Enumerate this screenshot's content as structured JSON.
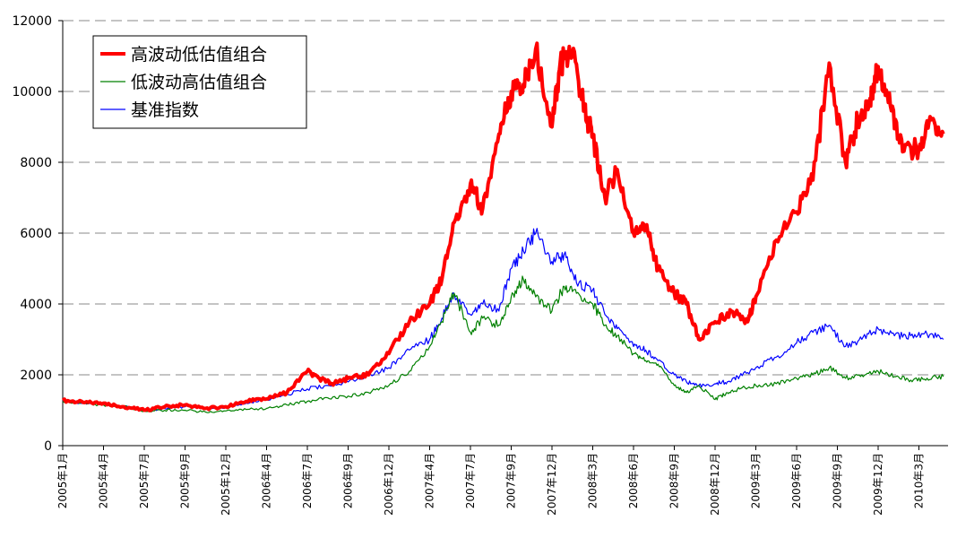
{
  "chart_data": {
    "type": "line",
    "title": "",
    "xlabel": "",
    "ylabel": "",
    "ylim": [
      0,
      12000
    ],
    "y_ticks": [
      0,
      2000,
      4000,
      6000,
      8000,
      10000,
      12000
    ],
    "y_tick_labels": [
      "0",
      "2000",
      "4000",
      "6000",
      "8000",
      "10000",
      "12000"
    ],
    "grid": "horizontal dashed",
    "legend_position": "top-left",
    "x_tick_labels": [
      "2005年1月",
      "2005年4月",
      "2005年7月",
      "2005年9月",
      "2005年12月",
      "2006年4月",
      "2006年7月",
      "2006年9月",
      "2006年12月",
      "2007年4月",
      "2007年7月",
      "2007年9月",
      "2007年12月",
      "2008年3月",
      "2008年6月",
      "2008年9月",
      "2008年12月",
      "2009年3月",
      "2009年6月",
      "2009年9月",
      "2009年12月",
      "2010年3月"
    ],
    "x_range": [
      0,
      21.7
    ],
    "series": [
      {
        "name": "高波动低估值组合",
        "color": "#ff0000",
        "x": [
          0,
          0.5,
          1,
          1.5,
          2,
          2.5,
          3,
          3.5,
          4,
          4.5,
          5,
          5.5,
          6,
          6.3,
          6.6,
          7,
          7.5,
          8,
          8.5,
          9,
          9.3,
          9.6,
          10,
          10.3,
          10.7,
          11,
          11.3,
          11.6,
          12,
          12.2,
          12.5,
          12.8,
          13,
          13.3,
          13.6,
          14,
          14.3,
          14.6,
          15,
          15.3,
          15.6,
          16,
          16.4,
          16.8,
          17,
          17.5,
          18,
          18.4,
          18.8,
          19.2,
          19.5,
          19.8,
          20,
          20.3,
          20.6,
          21,
          21.3,
          21.6
        ],
        "values": [
          1280,
          1220,
          1200,
          1100,
          1000,
          1100,
          1150,
          1050,
          1100,
          1250,
          1320,
          1500,
          2100,
          1900,
          1750,
          1900,
          2000,
          2600,
          3500,
          4000,
          4700,
          6300,
          7400,
          6700,
          8800,
          10000,
          10200,
          11200,
          9000,
          10800,
          11000,
          9500,
          8700,
          7000,
          7800,
          6000,
          6200,
          5000,
          4300,
          4000,
          3000,
          3500,
          3800,
          3500,
          4200,
          5800,
          6600,
          7500,
          10800,
          8000,
          9200,
          9800,
          10700,
          9600,
          8300,
          8400,
          9200,
          8800
        ]
      },
      {
        "name": "低波动高估值组合",
        "color": "#008000",
        "x": [
          0,
          0.5,
          1,
          1.5,
          2,
          2.5,
          3,
          3.5,
          4,
          4.5,
          5,
          5.5,
          6,
          6.5,
          7,
          7.5,
          8,
          8.5,
          9,
          9.3,
          9.6,
          10,
          10.3,
          10.7,
          11,
          11.3,
          11.6,
          12,
          12.3,
          12.6,
          13,
          13.3,
          13.6,
          14,
          14.3,
          14.6,
          15,
          15.3,
          15.6,
          16,
          16.3,
          16.6,
          17,
          17.5,
          18,
          18.4,
          18.8,
          19.2,
          19.6,
          20,
          20.4,
          20.8,
          21.2,
          21.6
        ],
        "values": [
          1250,
          1200,
          1150,
          1100,
          980,
          1000,
          1000,
          950,
          980,
          1020,
          1050,
          1150,
          1250,
          1350,
          1400,
          1500,
          1700,
          2100,
          2800,
          3500,
          4300,
          3200,
          3600,
          3400,
          4200,
          4700,
          4200,
          3800,
          4500,
          4300,
          4000,
          3400,
          3100,
          2600,
          2400,
          2300,
          1700,
          1500,
          1700,
          1300,
          1500,
          1600,
          1700,
          1750,
          1900,
          2000,
          2200,
          1900,
          2000,
          2100,
          1950,
          1850,
          1900,
          1950
        ]
      },
      {
        "name": "基准指数",
        "color": "#0000ff",
        "x": [
          0,
          0.5,
          1,
          1.5,
          2,
          2.5,
          3,
          3.5,
          4,
          4.5,
          5,
          5.5,
          6,
          6.5,
          7,
          7.5,
          8,
          8.5,
          9,
          9.3,
          9.6,
          10,
          10.3,
          10.7,
          11,
          11.3,
          11.6,
          12,
          12.3,
          12.6,
          13,
          13.3,
          13.6,
          14,
          14.3,
          14.6,
          15,
          15.3,
          15.6,
          16,
          16.3,
          16.6,
          17,
          17.5,
          18,
          18.4,
          18.8,
          19.2,
          19.6,
          20,
          20.4,
          20.8,
          21.2,
          21.6
        ],
        "values": [
          1260,
          1210,
          1180,
          1100,
          1000,
          1050,
          1100,
          1050,
          1080,
          1200,
          1300,
          1450,
          1600,
          1700,
          1800,
          2000,
          2200,
          2700,
          3000,
          3600,
          4300,
          3700,
          4000,
          3800,
          5000,
          5500,
          6000,
          5200,
          5400,
          4600,
          4400,
          3700,
          3300,
          2800,
          2700,
          2400,
          2000,
          1800,
          1700,
          1750,
          1800,
          1950,
          2200,
          2500,
          2900,
          3200,
          3400,
          2800,
          3000,
          3300,
          3100,
          3100,
          3150,
          3000
        ]
      }
    ]
  }
}
